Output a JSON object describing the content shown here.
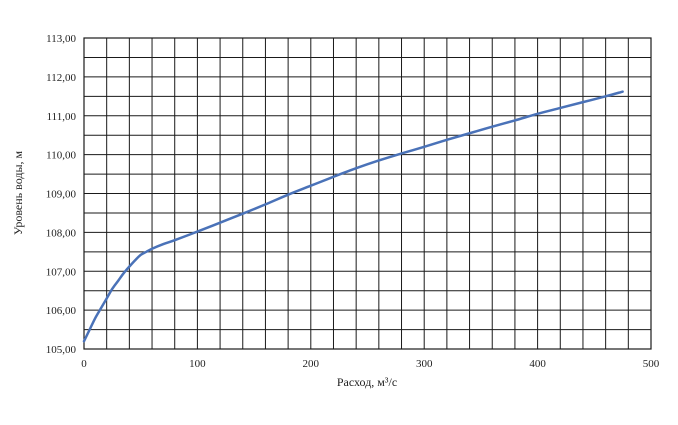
{
  "chart_data": {
    "type": "line",
    "title": "",
    "xlabel": "Расход, м³/с",
    "ylabel": "Уровень воды, м",
    "xlim": [
      0,
      500
    ],
    "ylim": [
      105,
      113
    ],
    "x_major_ticks": [
      0,
      100,
      200,
      300,
      400,
      500
    ],
    "x_tick_labels": [
      "0",
      "100",
      "200",
      "300",
      "400",
      "500"
    ],
    "x_minor_step": 20,
    "y_major_ticks": [
      105,
      106,
      107,
      108,
      109,
      110,
      111,
      112,
      113
    ],
    "y_tick_labels": [
      "105,00",
      "106,00",
      "107,00",
      "108,00",
      "109,00",
      "110,00",
      "111,00",
      "112,00",
      "113,00"
    ],
    "y_minor_step": 0.5,
    "grid": true,
    "legend": "none",
    "series": [
      {
        "color": "#4a72b8",
        "x": [
          0,
          5,
          10,
          15,
          20,
          25,
          30,
          35,
          40,
          45,
          50,
          55,
          60,
          70,
          80,
          100,
          120,
          140,
          160,
          180,
          200,
          220,
          240,
          260,
          280,
          300,
          320,
          340,
          360,
          380,
          400,
          420,
          440,
          460,
          475
        ],
        "y": [
          105.2,
          105.5,
          105.8,
          106.05,
          106.3,
          106.55,
          106.75,
          106.95,
          107.12,
          107.28,
          107.42,
          107.5,
          107.58,
          107.7,
          107.8,
          108.02,
          108.25,
          108.48,
          108.72,
          108.97,
          109.2,
          109.43,
          109.65,
          109.85,
          110.03,
          110.2,
          110.38,
          110.55,
          110.72,
          110.88,
          111.05,
          111.2,
          111.35,
          111.5,
          111.62
        ]
      }
    ]
  }
}
